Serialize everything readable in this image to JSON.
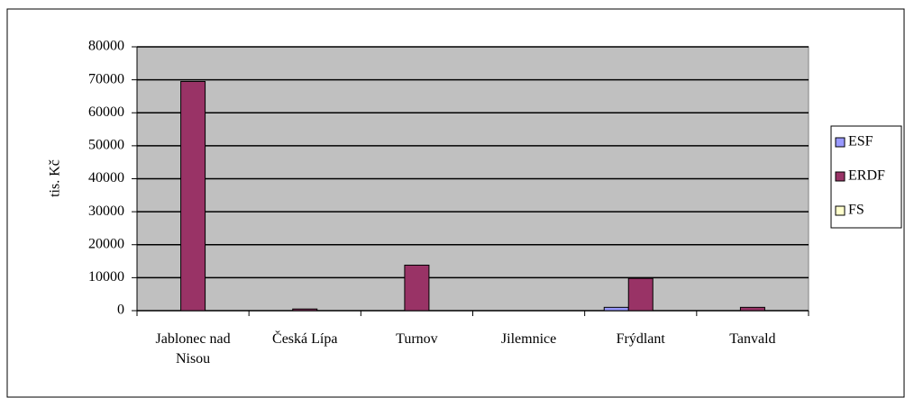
{
  "chart_data": {
    "type": "bar",
    "y_label": "tis. Kč",
    "categories": [
      "Jablonec nad Nisou",
      "Česká Lípa",
      "Turnov",
      "Jilemnice",
      "Frýdlant",
      "Tanvald"
    ],
    "series": [
      {
        "name": "ESF",
        "color": "#9999ff",
        "values": [
          0,
          0,
          0,
          0,
          1000,
          0
        ]
      },
      {
        "name": "ERDF",
        "color": "#993366",
        "values": [
          69500,
          500,
          13800,
          0,
          9800,
          1000
        ]
      },
      {
        "name": "FS",
        "color": "#ffffcc",
        "values": [
          0,
          0,
          0,
          0,
          0,
          0
        ]
      }
    ],
    "ylim": [
      0,
      80000
    ],
    "yticks": [
      0,
      10000,
      20000,
      30000,
      40000,
      50000,
      60000,
      70000,
      80000
    ],
    "grid": true,
    "legend": "right"
  }
}
